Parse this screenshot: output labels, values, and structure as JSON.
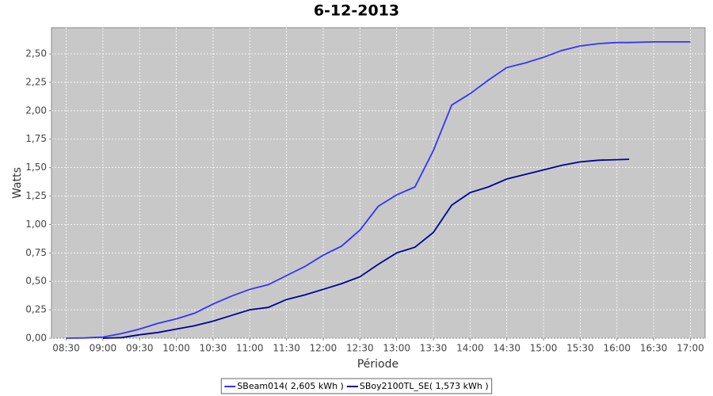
{
  "chart_data": {
    "type": "line",
    "title": "6-12-2013",
    "x_label": "Période",
    "y_label": "Watts",
    "x": [
      "08:30",
      "08:45",
      "09:00",
      "09:15",
      "09:30",
      "09:45",
      "10:00",
      "10:15",
      "10:30",
      "10:45",
      "11:00",
      "11:15",
      "11:30",
      "11:45",
      "12:00",
      "12:15",
      "12:30",
      "12:45",
      "13:00",
      "13:15",
      "13:30",
      "13:45",
      "14:00",
      "14:15",
      "14:30",
      "14:45",
      "15:00",
      "15:15",
      "15:30",
      "15:45",
      "16:00",
      "16:10",
      "16:30",
      "17:00"
    ],
    "series": [
      {
        "name": "SBeam014( 2,605 kWh )",
        "color": "#3333ff",
        "values": [
          0,
          0.002,
          0.01,
          0.04,
          0.08,
          0.13,
          0.17,
          0.22,
          0.3,
          0.37,
          0.43,
          0.47,
          0.55,
          0.63,
          0.73,
          0.81,
          0.95,
          1.16,
          1.26,
          1.33,
          1.65,
          2.05,
          2.15,
          2.27,
          2.38,
          2.42,
          2.47,
          2.53,
          2.57,
          2.59,
          2.6,
          2.6,
          2.605,
          2.605
        ]
      },
      {
        "name": "SBoy2100TL_SE( 1,573 kWh )",
        "color": "#000099",
        "values": [
          null,
          null,
          0,
          0.005,
          0.03,
          0.05,
          0.08,
          0.11,
          0.15,
          0.2,
          0.25,
          0.27,
          0.34,
          0.38,
          0.43,
          0.48,
          0.54,
          0.65,
          0.75,
          0.8,
          0.93,
          1.17,
          1.28,
          1.33,
          1.4,
          1.44,
          1.48,
          1.52,
          1.55,
          1.565,
          1.57,
          1.573,
          null,
          null
        ]
      }
    ],
    "xlim": [
      "08:18",
      "17:12"
    ],
    "xticks": [
      "08:30",
      "09:00",
      "09:30",
      "10:00",
      "10:30",
      "11:00",
      "11:30",
      "12:00",
      "12:30",
      "13:00",
      "13:30",
      "14:00",
      "14:30",
      "15:00",
      "15:30",
      "16:00",
      "16:30",
      "17:00"
    ],
    "ylim": [
      0,
      2.73
    ],
    "yticks": [
      {
        "value": 0,
        "label": "0,00"
      },
      {
        "value": 0.25,
        "label": "0,25"
      },
      {
        "value": 0.5,
        "label": "0,50"
      },
      {
        "value": 0.75,
        "label": "0,75"
      },
      {
        "value": 1,
        "label": "1,00"
      },
      {
        "value": 1.25,
        "label": "1,25"
      },
      {
        "value": 1.5,
        "label": "1,50"
      },
      {
        "value": 1.75,
        "label": "1,75"
      },
      {
        "value": 2,
        "label": "2,00"
      },
      {
        "value": 2.25,
        "label": "2,25"
      },
      {
        "value": 2.5,
        "label": "2,50"
      }
    ],
    "grid": true,
    "legend": "bottom"
  }
}
